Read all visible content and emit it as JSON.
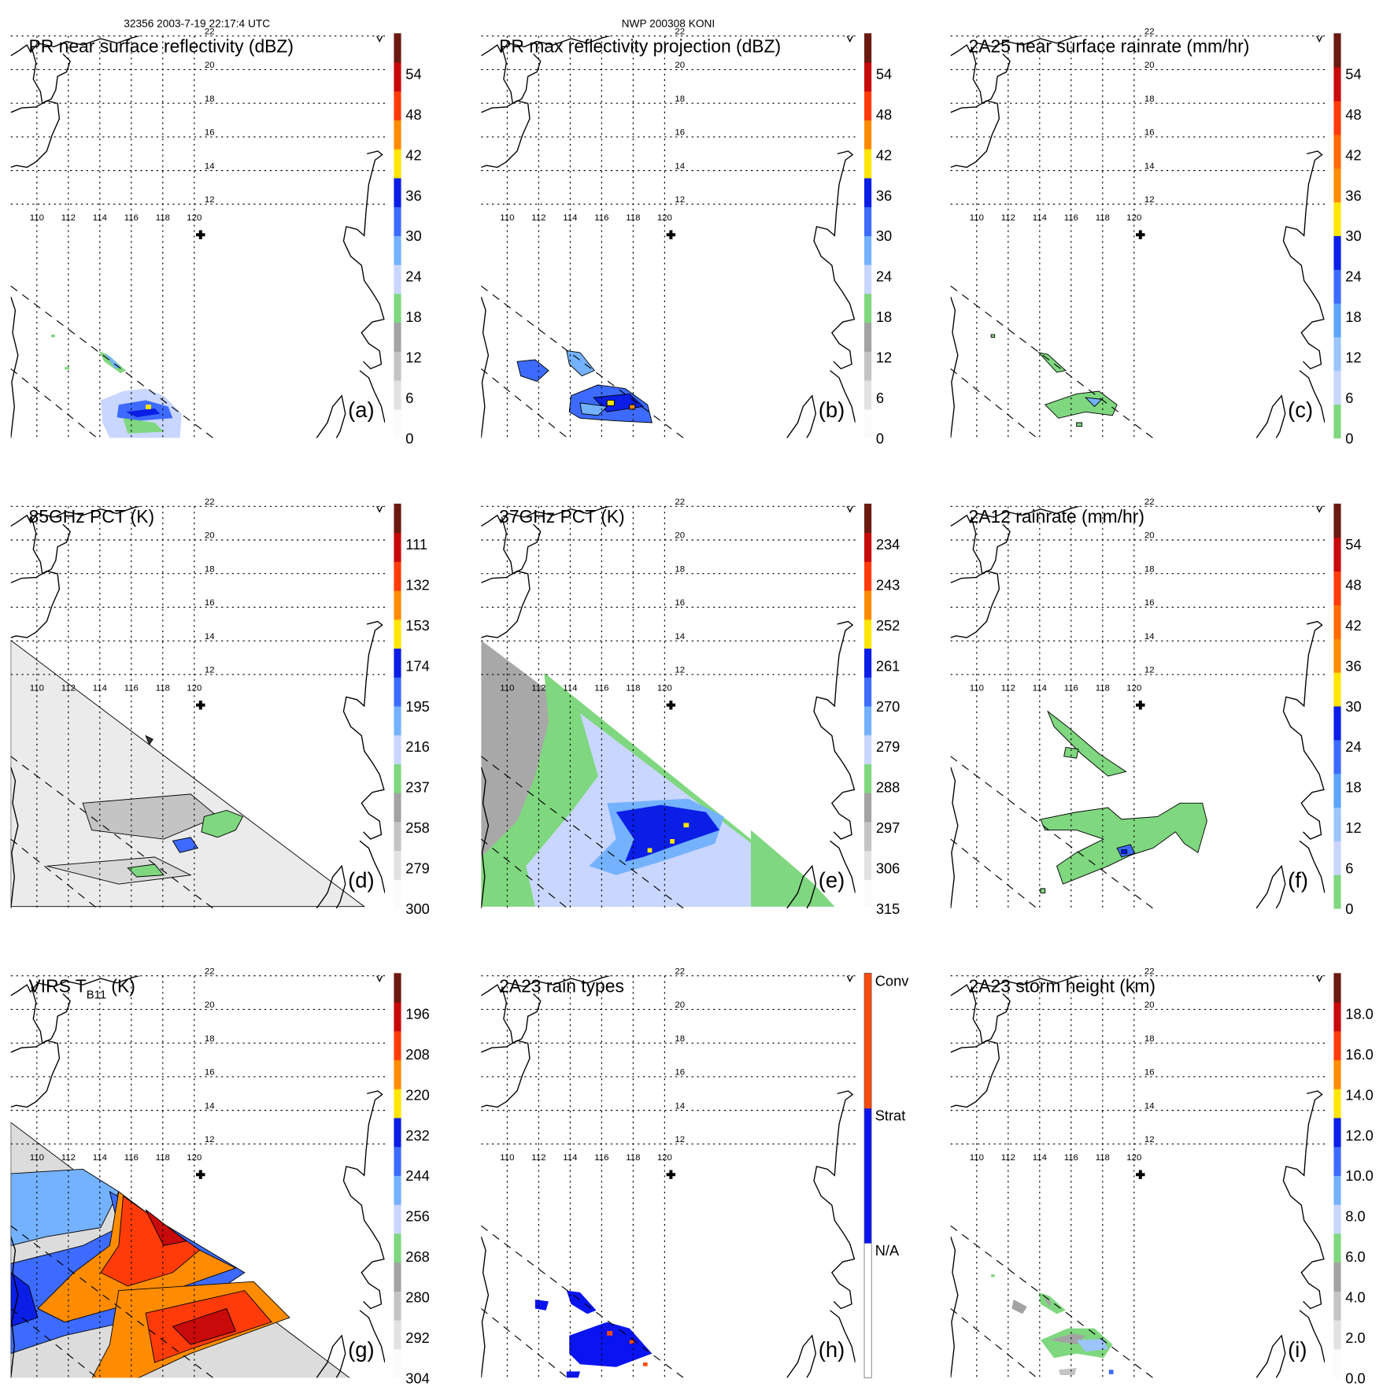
{
  "header": {
    "left": "32356 2003-7-19 22:17:4 UTC",
    "center": "NWP 200308 KONI"
  },
  "map": {
    "lon_ticks": [
      "110",
      "112",
      "114",
      "116",
      "118",
      "120"
    ],
    "lat_ticks": [
      "22",
      "20",
      "18",
      "16",
      "14",
      "12"
    ],
    "center_marker": "cross-icon"
  },
  "palettes": {
    "standard": [
      "#fbfbfb",
      "#e2e2e2",
      "#c4c4c4",
      "#a3a3a3",
      "#7fd77f",
      "#c9d6ff",
      "#74b2ff",
      "#3d6bff",
      "#0a1ee6",
      "#ffe600",
      "#ff8c00",
      "#ff3b0a",
      "#c80a0a",
      "#6b1a12"
    ],
    "rain": [
      "#7fd77f",
      "#c9d6ff",
      "#9cc4ff",
      "#5aa5ff",
      "#3d6bff",
      "#0a1ee6",
      "#ffe600",
      "#ff8c00",
      "#ff6a00",
      "#ff3b0a",
      "#c80a0a",
      "#6b1a12"
    ],
    "types": [
      "#ffffff",
      "#0a14f0",
      "#ff4a0a"
    ]
  },
  "chart_data": [
    {
      "type": "heatmap",
      "id": "a",
      "title": "PR near surface reflectivity (dBZ)",
      "label": "(a)",
      "palette": "standard",
      "range": [
        0,
        60
      ],
      "ticks": [
        "0",
        "6",
        "12",
        "18",
        "24",
        "30",
        "36",
        "42",
        "48",
        "54"
      ]
    },
    {
      "type": "heatmap",
      "id": "b",
      "title": "PR max reflectivity projection (dBZ)",
      "label": "(b)",
      "palette": "standard",
      "range": [
        0,
        60
      ],
      "ticks": [
        "0",
        "6",
        "12",
        "18",
        "24",
        "30",
        "36",
        "42",
        "48",
        "54"
      ]
    },
    {
      "type": "heatmap",
      "id": "c",
      "title": "2A25 near surface rainrate (mm/hr)",
      "label": "(c)",
      "palette": "rain",
      "range": [
        0,
        60
      ],
      "ticks": [
        "0",
        "6",
        "12",
        "18",
        "24",
        "30",
        "36",
        "42",
        "48",
        "54"
      ]
    },
    {
      "type": "heatmap",
      "id": "d",
      "title": "85GHz PCT (K)",
      "label": "(d)",
      "palette": "standard",
      "range": [
        300,
        90
      ],
      "ticks": [
        "300",
        "279",
        "258",
        "237",
        "216",
        "195",
        "174",
        "153",
        "132",
        "111"
      ]
    },
    {
      "type": "heatmap",
      "id": "e",
      "title": "37GHz PCT (K)",
      "label": "(e)",
      "palette": "standard",
      "range": [
        315,
        225
      ],
      "ticks": [
        "315",
        "306",
        "297",
        "288",
        "279",
        "270",
        "261",
        "252",
        "243",
        "234"
      ]
    },
    {
      "type": "heatmap",
      "id": "f",
      "title": "2A12 rainrate (mm/hr)",
      "label": "(f)",
      "palette": "rain",
      "range": [
        0,
        60
      ],
      "ticks": [
        "0",
        "6",
        "12",
        "18",
        "24",
        "30",
        "36",
        "42",
        "48",
        "54"
      ]
    },
    {
      "type": "heatmap",
      "id": "g",
      "title": "VIRS T",
      "title_sub": "B11",
      "title_end": " (K)",
      "label": "(g)",
      "palette": "standard",
      "range": [
        304,
        184
      ],
      "ticks": [
        "304",
        "292",
        "280",
        "268",
        "256",
        "244",
        "232",
        "220",
        "208",
        "196"
      ]
    },
    {
      "type": "heatmap",
      "id": "h",
      "title": "2A23 rain types",
      "label": "(h)",
      "palette": "types",
      "categorical": true,
      "ticks": [
        "N/A",
        "Strat",
        "Conv"
      ]
    },
    {
      "type": "heatmap",
      "id": "i",
      "title": "2A23 storm height (km)",
      "label": "(i)",
      "palette": "standard",
      "range": [
        0,
        20
      ],
      "ticks": [
        "0.0",
        "2.0",
        "4.0",
        "6.0",
        "8.0",
        "10.0",
        "12.0",
        "14.0",
        "16.0",
        "18.0"
      ]
    }
  ]
}
